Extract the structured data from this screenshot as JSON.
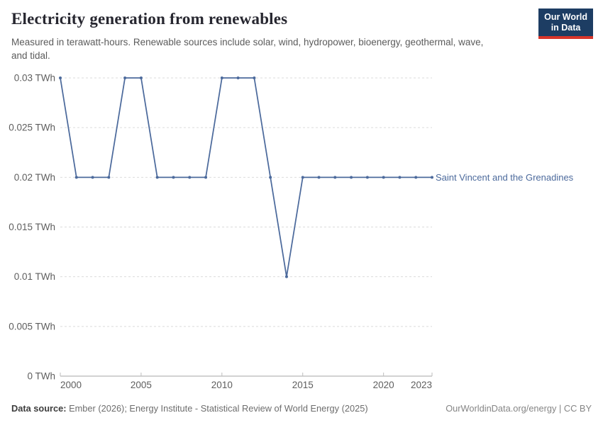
{
  "header": {
    "title": "Electricity generation from renewables",
    "subtitle": "Measured in terawatt-hours. Renewable sources include solar, wind, hydropower, bioenergy, geothermal, wave, and tidal."
  },
  "logo": {
    "line1": "Our World",
    "line2": "in Data"
  },
  "chart_data": {
    "type": "line",
    "title": "Electricity generation from renewables",
    "unit": "TWh",
    "x": [
      2000,
      2001,
      2002,
      2003,
      2004,
      2005,
      2006,
      2007,
      2008,
      2009,
      2010,
      2011,
      2012,
      2013,
      2014,
      2015,
      2016,
      2017,
      2018,
      2019,
      2020,
      2021,
      2022,
      2023
    ],
    "series": [
      {
        "name": "Saint Vincent and the Grenadines",
        "color": "#4C6A9C",
        "values": [
          0.03,
          0.02,
          0.02,
          0.02,
          0.03,
          0.03,
          0.02,
          0.02,
          0.02,
          0.02,
          0.03,
          0.03,
          0.03,
          0.02,
          0.01,
          0.02,
          0.02,
          0.02,
          0.02,
          0.02,
          0.02,
          0.02,
          0.02,
          0.02
        ]
      }
    ],
    "xlim": [
      2000,
      2023
    ],
    "ylim": [
      0,
      0.03
    ],
    "y_ticks": [
      {
        "value": 0,
        "label": "0 TWh"
      },
      {
        "value": 0.005,
        "label": "0.005 TWh"
      },
      {
        "value": 0.01,
        "label": "0.01 TWh"
      },
      {
        "value": 0.015,
        "label": "0.015 TWh"
      },
      {
        "value": 0.02,
        "label": "0.02 TWh"
      },
      {
        "value": 0.025,
        "label": "0.025 TWh"
      },
      {
        "value": 0.03,
        "label": "0.03 TWh"
      }
    ],
    "x_ticks": [
      2000,
      2005,
      2010,
      2015,
      2020,
      2023
    ],
    "grid": "horizontal-dashed",
    "legend_position": "right-of-line-end"
  },
  "footer": {
    "source_label": "Data source:",
    "source_text": " Ember (2026); Energy Institute - Statistical Review of World Energy (2025)",
    "credit": "OurWorldinData.org/energy | CC BY"
  },
  "colors": {
    "line": "#4C6A9C",
    "grid": "#DBDBDB",
    "axis": "#A5A5A5",
    "tick": "#BDBDBD",
    "tick_text": "#5E5E5E",
    "logo_bg": "#1D3D63",
    "logo_bar": "#D8352A"
  }
}
